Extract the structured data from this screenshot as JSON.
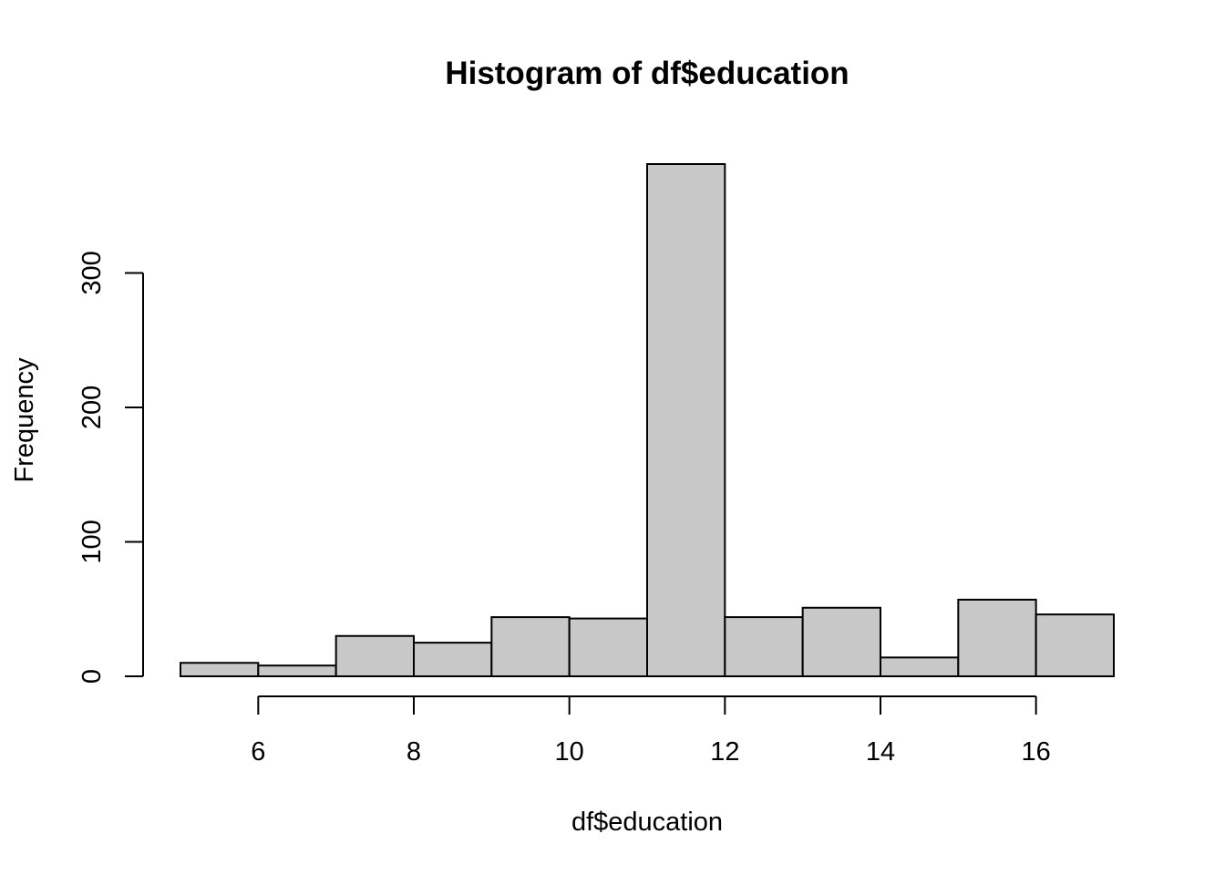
{
  "chart_data": {
    "type": "bar",
    "title": "Histogram of df$education",
    "xlabel": "df$education",
    "ylabel": "Frequency",
    "bins": [
      {
        "x0": 5,
        "x1": 6,
        "count": 10
      },
      {
        "x0": 6,
        "x1": 7,
        "count": 8
      },
      {
        "x0": 7,
        "x1": 8,
        "count": 30
      },
      {
        "x0": 8,
        "x1": 9,
        "count": 25
      },
      {
        "x0": 9,
        "x1": 10,
        "count": 44
      },
      {
        "x0": 10,
        "x1": 11,
        "count": 43
      },
      {
        "x0": 11,
        "x1": 12,
        "count": 381
      },
      {
        "x0": 12,
        "x1": 13,
        "count": 44
      },
      {
        "x0": 13,
        "x1": 14,
        "count": 51
      },
      {
        "x0": 14,
        "x1": 15,
        "count": 14
      },
      {
        "x0": 15,
        "x1": 16,
        "count": 57
      },
      {
        "x0": 16,
        "x1": 17,
        "count": 46
      }
    ],
    "xlim": [
      5,
      17
    ],
    "ylim": [
      0,
      381
    ],
    "x_ticks": [
      6,
      8,
      10,
      12,
      14,
      16
    ],
    "y_ticks": [
      0,
      100,
      200,
      300
    ],
    "grid": false,
    "legend": "none",
    "colors": {
      "bar_fill": "#c8c8c8",
      "bar_stroke": "#000000"
    }
  }
}
